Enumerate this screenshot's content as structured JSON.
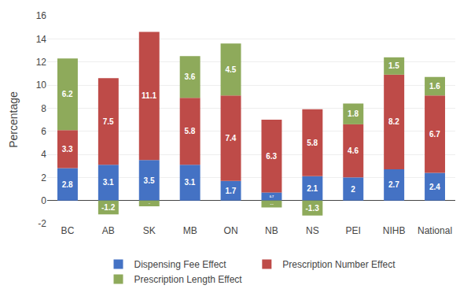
{
  "chart_data": {
    "type": "bar",
    "stacked": true,
    "categories": [
      "BC",
      "AB",
      "SK",
      "MB",
      "ON",
      "NB",
      "NS",
      "PEI",
      "NIHB",
      "National"
    ],
    "series": [
      {
        "name": "Dispensing Fee Effect",
        "color": "#4472c4",
        "values": [
          2.8,
          3.1,
          3.5,
          3.1,
          1.7,
          0.7,
          2.1,
          2.0,
          2.7,
          2.4
        ]
      },
      {
        "name": "Prescription Number Effect",
        "color": "#be4b48",
        "values": [
          3.3,
          7.5,
          11.1,
          5.8,
          7.4,
          6.3,
          5.8,
          4.6,
          8.2,
          6.7
        ]
      },
      {
        "name": "Prescription Length Effect",
        "color": "#8eaa5b",
        "values": [
          6.2,
          -1.2,
          -0.5,
          3.6,
          4.5,
          -0.6,
          -1.3,
          1.8,
          1.5,
          1.6
        ]
      }
    ],
    "ylabel": "Percentage",
    "ylim": [
      -2,
      16
    ],
    "yticks": [
      -2,
      0,
      2,
      4,
      6,
      8,
      10,
      12,
      14,
      16
    ],
    "grid": true,
    "data_labels": true,
    "legend": "bottom"
  }
}
